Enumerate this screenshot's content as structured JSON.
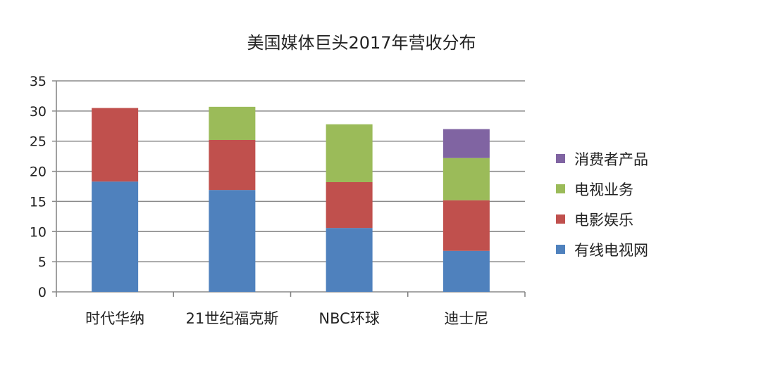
{
  "chart_data": {
    "type": "bar",
    "stacked": true,
    "title": "美国媒体巨头2017年营收分布",
    "xlabel": "",
    "ylabel": "",
    "ylim": [
      0,
      35
    ],
    "yticks": [
      0,
      5,
      10,
      15,
      20,
      25,
      30,
      35
    ],
    "grid": true,
    "legend_position": "right",
    "categories": [
      "时代华纳",
      "21世纪福克斯",
      "NBC环球",
      "迪士尼"
    ],
    "series": [
      {
        "name": "有线电视网",
        "color": "#4f81bd",
        "values": [
          18.3,
          16.9,
          10.6,
          6.8
        ]
      },
      {
        "name": "电影娱乐",
        "color": "#c0504d",
        "values": [
          12.2,
          8.3,
          7.6,
          8.4
        ]
      },
      {
        "name": "电视业务",
        "color": "#9bbb59",
        "values": [
          0,
          5.5,
          9.6,
          7.0
        ]
      },
      {
        "name": "消费者产品",
        "color": "#8064a2",
        "values": [
          0,
          0,
          0,
          4.8
        ]
      }
    ]
  }
}
